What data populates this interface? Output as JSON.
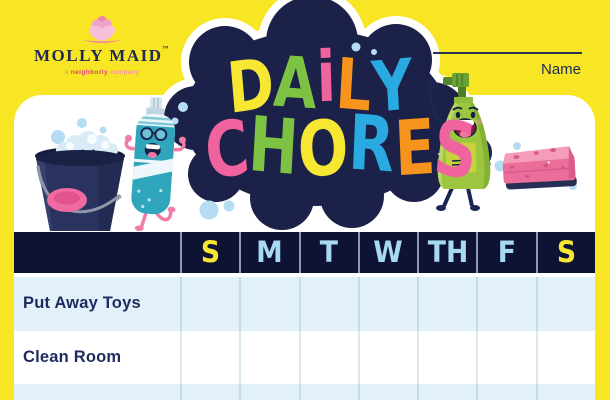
{
  "brand": {
    "name": "MOLLY MAID",
    "trademark": "™",
    "tagline": {
      "a": "a ",
      "bold": "neighborly",
      "rest": " company"
    }
  },
  "name_field": {
    "label": "Name"
  },
  "title": {
    "daily": [
      {
        "char": "D",
        "color": "#F7E733"
      },
      {
        "char": "A",
        "color": "#7DC242"
      },
      {
        "char": "i",
        "color": "#F0639E"
      },
      {
        "char": "L",
        "color": "#F7941E"
      },
      {
        "char": "Y",
        "color": "#29ABE2"
      }
    ],
    "chores": [
      {
        "char": "C",
        "color": "#F0639E"
      },
      {
        "char": "H",
        "color": "#7DC242"
      },
      {
        "char": "O",
        "color": "#F7E733"
      },
      {
        "char": "R",
        "color": "#29ABE2"
      },
      {
        "char": "E",
        "color": "#F7941E"
      },
      {
        "char": "S",
        "color": "#F0639E"
      }
    ]
  },
  "table": {
    "days": [
      {
        "label": "S",
        "color": "#F7E733"
      },
      {
        "label": "M",
        "color": "#A8D9F2"
      },
      {
        "label": "T",
        "color": "#A8D9F2"
      },
      {
        "label": "W",
        "color": "#A8D9F2"
      },
      {
        "label": "TH",
        "color": "#A8D9F2"
      },
      {
        "label": "F",
        "color": "#A8D9F2"
      },
      {
        "label": "S",
        "color": "#F7E733"
      }
    ],
    "chores": [
      "Put Away Toys",
      "Clean Room"
    ]
  },
  "icons": [
    "lotus-flower-icon",
    "bucket-with-suds-icon",
    "spray-bottle-character-icon",
    "soap-bottle-character-icon",
    "sponge-icon",
    "bubbles-icon",
    "cloud-icon"
  ],
  "colors": {
    "background_yellow": "#F8E524",
    "card_white": "#FFFFFF",
    "cloud_navy": "#1B2148",
    "header_navy": "#0E1334",
    "row_light_blue": "#E2F0F9",
    "text_navy": "#1F2A5E",
    "day_blue": "#A8D9F2",
    "day_yellow": "#F7E733",
    "brand_pink": "#E0447F"
  }
}
